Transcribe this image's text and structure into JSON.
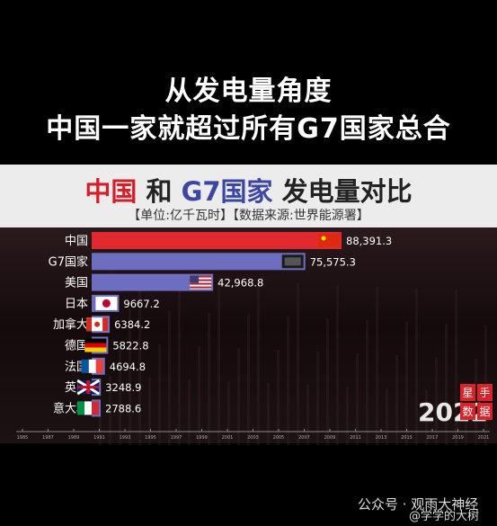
{
  "headline": {
    "line1": "从发电量角度",
    "line2": "中国一家就超过所有G7国家总合"
  },
  "chart_title": {
    "part_china": "中国",
    "part_and": "和",
    "part_g7": "G7国家",
    "part_rest": "发电量对比"
  },
  "chart_subtitle": "【单位:亿千瓦时】【数据来源:世界能源署】",
  "year_label": "2022",
  "badge": {
    "line1": "星",
    "line2": "手",
    "line3": "数",
    "line4": "据"
  },
  "watermark": {
    "wechat": "公众号 · 观雨大神经",
    "weibo": "@学学的大树"
  },
  "colors": {
    "china_bar": "#e02a2f",
    "other_bar": "#6e6ec0",
    "value_text": "#ffffff"
  },
  "chart_data": {
    "type": "bar",
    "orientation": "horizontal",
    "title": "中国 和 G7国家 发电量对比",
    "subtitle": "【单位:亿千瓦时】【数据来源:世界能源署】",
    "categories": [
      "中国",
      "G7国家",
      "美国",
      "日本",
      "加拿大",
      "德国",
      "法国",
      "英国",
      "意大利"
    ],
    "values": [
      88391.3,
      75575.3,
      42968.8,
      9667.2,
      6384.2,
      5822.8,
      4694.8,
      3248.9,
      2788.6
    ],
    "value_labels": [
      "88,391.3",
      "75,575.3",
      "42,968.8",
      "9667.2",
      "6384.2",
      "5822.8",
      "4694.8",
      "3248.9",
      "2788.6"
    ],
    "flags": [
      "china-flag",
      "g7-flag",
      "usa-flag",
      "japan-flag",
      "canada-flag",
      "germany-flag",
      "france-flag",
      "uk-flag",
      "italy-flag"
    ],
    "timeline_ticks": [
      "1985",
      "1987",
      "1989",
      "1991",
      "1993",
      "1995",
      "1997",
      "1999",
      "2001",
      "2003",
      "2005",
      "2007",
      "2009",
      "2011",
      "2013",
      "2015",
      "2017",
      "2019",
      "2021"
    ],
    "xlim": [
      0,
      100000
    ]
  }
}
